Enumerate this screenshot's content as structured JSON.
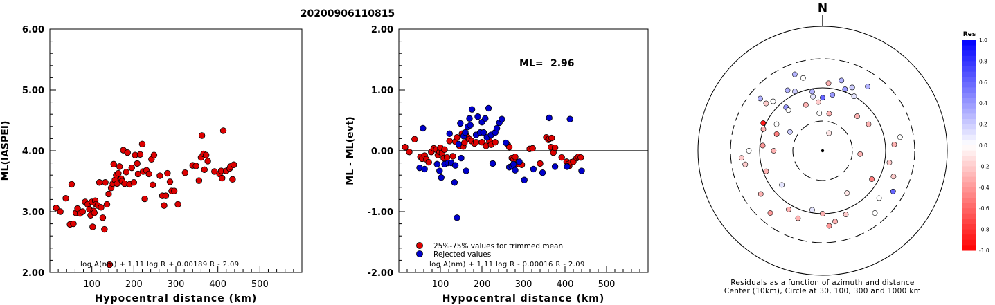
{
  "title": "20200906110815",
  "chart_data": [
    {
      "type": "scatter",
      "ylabel": "ML(IASPEI)",
      "xlabel": "Hypocentral distance (km)",
      "xlim": [
        0,
        600
      ],
      "ylim": [
        2.0,
        6.0
      ],
      "x_ticks": [
        "100",
        "200",
        "300",
        "400",
        "500"
      ],
      "y_ticks": [
        "2.00",
        "3.00",
        "4.00",
        "5.00",
        "6.00"
      ],
      "formula": "log A(nm) + 1.11 log R + 0.00189 R - 2.09",
      "marker_color": "#dd0000",
      "points": [
        [
          15,
          3.06
        ],
        [
          25,
          3.0
        ],
        [
          38,
          3.22
        ],
        [
          48,
          2.79
        ],
        [
          52,
          3.45
        ],
        [
          56,
          2.8
        ],
        [
          62,
          2.98
        ],
        [
          66,
          3.05
        ],
        [
          72,
          2.97
        ],
        [
          78,
          3.0
        ],
        [
          84,
          3.16
        ],
        [
          90,
          3.12
        ],
        [
          94,
          3.04
        ],
        [
          97,
          2.94
        ],
        [
          100,
          3.16
        ],
        [
          102,
          2.75
        ],
        [
          104,
          3.01
        ],
        [
          106,
          2.98
        ],
        [
          108,
          3.18
        ],
        [
          110,
          3.12
        ],
        [
          114,
          3.1
        ],
        [
          118,
          3.48
        ],
        [
          122,
          3.07
        ],
        [
          126,
          2.9
        ],
        [
          130,
          2.71
        ],
        [
          132,
          3.48
        ],
        [
          136,
          3.12
        ],
        [
          140,
          3.29
        ],
        [
          142,
          2.13
        ],
        [
          146,
          3.39
        ],
        [
          150,
          3.46
        ],
        [
          152,
          3.78
        ],
        [
          155,
          3.52
        ],
        [
          158,
          3.6
        ],
        [
          160,
          3.46
        ],
        [
          163,
          3.63
        ],
        [
          166,
          3.74
        ],
        [
          170,
          3.54
        ],
        [
          172,
          3.5
        ],
        [
          175,
          4.01
        ],
        [
          178,
          3.46
        ],
        [
          182,
          3.65
        ],
        [
          185,
          3.97
        ],
        [
          190,
          3.45
        ],
        [
          195,
          3.72
        ],
        [
          200,
          3.48
        ],
        [
          203,
          3.93
        ],
        [
          208,
          3.79
        ],
        [
          210,
          3.62
        ],
        [
          215,
          3.94
        ],
        [
          220,
          4.11
        ],
        [
          222,
          3.66
        ],
        [
          226,
          3.21
        ],
        [
          230,
          3.68
        ],
        [
          236,
          3.62
        ],
        [
          242,
          3.86
        ],
        [
          245,
          3.44
        ],
        [
          248,
          3.93
        ],
        [
          262,
          3.59
        ],
        [
          268,
          3.26
        ],
        [
          272,
          3.1
        ],
        [
          276,
          3.26
        ],
        [
          280,
          3.63
        ],
        [
          286,
          3.49
        ],
        [
          290,
          3.34
        ],
        [
          296,
          3.34
        ],
        [
          305,
          3.12
        ],
        [
          322,
          3.64
        ],
        [
          340,
          3.76
        ],
        [
          348,
          3.75
        ],
        [
          355,
          3.51
        ],
        [
          360,
          3.89
        ],
        [
          362,
          4.25
        ],
        [
          366,
          3.95
        ],
        [
          368,
          3.69
        ],
        [
          372,
          3.93
        ],
        [
          376,
          3.83
        ],
        [
          392,
          3.66
        ],
        [
          404,
          3.62
        ],
        [
          408,
          3.67
        ],
        [
          410,
          3.55
        ],
        [
          413,
          4.33
        ],
        [
          420,
          3.67
        ],
        [
          428,
          3.71
        ],
        [
          430,
          3.74
        ],
        [
          435,
          3.53
        ],
        [
          438,
          3.77
        ]
      ]
    },
    {
      "type": "scatter",
      "ylabel": "ML - ML(evt)",
      "xlabel": "Hypocentral distance (km)",
      "xlim": [
        0,
        600
      ],
      "ylim": [
        -2.0,
        2.0
      ],
      "x_ticks": [
        "100",
        "200",
        "300",
        "400",
        "500"
      ],
      "y_ticks": [
        "-2.00",
        "-1.00",
        "0.00",
        "1.00",
        "2.00"
      ],
      "reference_line": 0.0,
      "ml_label": "ML=",
      "ml_value": "2.96",
      "formula": "log A(nm) + 1.11 log R - 0.00016 R - 2.09",
      "series": [
        {
          "name": "25%-75% values for trimmed mean",
          "color": "#dd0000",
          "points": [
            [
              15,
              0.06
            ],
            [
              25,
              -0.02
            ],
            [
              38,
              0.19
            ],
            [
              52,
              -0.1
            ],
            [
              56,
              -0.13
            ],
            [
              62,
              -0.08
            ],
            [
              66,
              -0.14
            ],
            [
              72,
              -0.19
            ],
            [
              78,
              -0.02
            ],
            [
              84,
              0.04
            ],
            [
              90,
              0.02
            ],
            [
              94,
              -0.07
            ],
            [
              98,
              -0.02
            ],
            [
              100,
              0.05
            ],
            [
              104,
              -0.04
            ],
            [
              108,
              -0.12
            ],
            [
              110,
              0.02
            ],
            [
              116,
              -0.11
            ],
            [
              122,
              0.16
            ],
            [
              130,
              -0.09
            ],
            [
              136,
              0.15
            ],
            [
              140,
              0.22
            ],
            [
              146,
              0.08
            ],
            [
              152,
              0.28
            ],
            [
              155,
              0.07
            ],
            [
              158,
              0.13
            ],
            [
              162,
              0.25
            ],
            [
              166,
              0.22
            ],
            [
              170,
              0.19
            ],
            [
              175,
              0.16
            ],
            [
              182,
              0.12
            ],
            [
              186,
              0.14
            ],
            [
              200,
              0.14
            ],
            [
              210,
              0.08
            ],
            [
              218,
              0.16
            ],
            [
              222,
              0.1
            ],
            [
              232,
              0.14
            ],
            [
              262,
              0.1
            ],
            [
              266,
              0.06
            ],
            [
              272,
              -0.12
            ],
            [
              276,
              -0.14
            ],
            [
              280,
              -0.1
            ],
            [
              286,
              -0.22
            ],
            [
              290,
              -0.22
            ],
            [
              296,
              -0.23
            ],
            [
              315,
              0.03
            ],
            [
              322,
              0.04
            ],
            [
              340,
              -0.21
            ],
            [
              355,
              0.22
            ],
            [
              360,
              0.18
            ],
            [
              362,
              0.2
            ],
            [
              366,
              0.06
            ],
            [
              368,
              0.21
            ],
            [
              372,
              -0.03
            ],
            [
              376,
              0.05
            ],
            [
              392,
              -0.11
            ],
            [
              404,
              -0.18
            ],
            [
              408,
              -0.22
            ],
            [
              410,
              -0.25
            ],
            [
              415,
              -0.19
            ],
            [
              420,
              -0.18
            ],
            [
              428,
              -0.12
            ],
            [
              432,
              -0.1
            ],
            [
              438,
              -0.11
            ]
          ]
        },
        {
          "name": "Rejected values",
          "color": "#0000cc",
          "points": [
            [
              50,
              -0.28
            ],
            [
              58,
              0.37
            ],
            [
              62,
              -0.3
            ],
            [
              92,
              -0.22
            ],
            [
              98,
              -0.33
            ],
            [
              102,
              -0.44
            ],
            [
              110,
              -0.22
            ],
            [
              118,
              -0.2
            ],
            [
              122,
              0.28
            ],
            [
              126,
              -0.2
            ],
            [
              134,
              -0.52
            ],
            [
              136,
              -0.24
            ],
            [
              140,
              -1.1
            ],
            [
              144,
              0.11
            ],
            [
              148,
              0.45
            ],
            [
              150,
              -0.12
            ],
            [
              156,
              0.24
            ],
            [
              160,
              0.3
            ],
            [
              162,
              -0.33
            ],
            [
              166,
              0.39
            ],
            [
              170,
              0.53
            ],
            [
              172,
              0.42
            ],
            [
              176,
              0.68
            ],
            [
              186,
              0.26
            ],
            [
              190,
              0.56
            ],
            [
              196,
              0.3
            ],
            [
              200,
              0.47
            ],
            [
              204,
              0.3
            ],
            [
              208,
              0.53
            ],
            [
              212,
              0.22
            ],
            [
              216,
              0.7
            ],
            [
              222,
              0.26
            ],
            [
              226,
              -0.21
            ],
            [
              232,
              0.3
            ],
            [
              236,
              0.37
            ],
            [
              242,
              0.46
            ],
            [
              248,
              0.52
            ],
            [
              258,
              0.13
            ],
            [
              266,
              -0.27
            ],
            [
              272,
              -0.25
            ],
            [
              276,
              -0.22
            ],
            [
              280,
              -0.32
            ],
            [
              290,
              -0.18
            ],
            [
              302,
              -0.48
            ],
            [
              324,
              -0.3
            ],
            [
              346,
              -0.36
            ],
            [
              362,
              0.54
            ],
            [
              376,
              -0.26
            ],
            [
              405,
              -0.26
            ],
            [
              412,
              0.52
            ],
            [
              440,
              -0.33
            ]
          ]
        }
      ]
    },
    {
      "type": "scatter",
      "subtype": "polar",
      "north_label": "N",
      "caption": "Residuals as a function of azimuth and distance",
      "caption2": "Center (10km), Circle at 30, 100, 300 and 1000 km",
      "colorbar_title": "Res",
      "colorbar_ticks": [
        "1.0",
        "0.8",
        "0.6",
        "0.4",
        "0.2",
        "0.0",
        "-0.2",
        "-0.4",
        "-0.6",
        "-0.8",
        "-1.0"
      ],
      "points_azimuth_distance_res": [
        [
          -20,
          200,
          0.3
        ],
        [
          -15,
          160,
          0.0
        ],
        [
          -25,
          110,
          0.2
        ],
        [
          -10,
          75,
          0.1
        ],
        [
          -5,
          60,
          -0.2
        ],
        [
          0,
          70,
          0.6
        ],
        [
          10,
          80,
          0.4
        ],
        [
          20,
          110,
          0.4
        ],
        [
          25,
          130,
          0.2
        ],
        [
          35,
          180,
          0.3
        ],
        [
          5,
          120,
          -0.3
        ],
        [
          15,
          145,
          0.3
        ],
        [
          30,
          100,
          0.1
        ],
        [
          -40,
          80,
          0.4
        ],
        [
          -45,
          130,
          0.0
        ],
        [
          -50,
          200,
          0.3
        ],
        [
          -60,
          40,
          0.2
        ],
        [
          -70,
          60,
          -0.5
        ],
        [
          -65,
          110,
          -0.9
        ],
        [
          -85,
          90,
          -0.4
        ],
        [
          -90,
          150,
          0.0
        ],
        [
          -95,
          200,
          -0.2
        ],
        [
          10,
          40,
          -0.3
        ],
        [
          20,
          20,
          -0.1
        ],
        [
          45,
          60,
          -0.3
        ],
        [
          60,
          70,
          -0.3
        ],
        [
          80,
          180,
          0.0
        ],
        [
          85,
          140,
          -0.3
        ],
        [
          95,
          40,
          -0.3
        ],
        [
          100,
          120,
          -0.2
        ],
        [
          120,
          80,
          -0.5
        ],
        [
          130,
          150,
          0.0
        ],
        [
          150,
          60,
          -0.1
        ],
        [
          160,
          120,
          -0.2
        ],
        [
          170,
          140,
          -0.3
        ],
        [
          175,
          160,
          -0.4
        ],
        [
          180,
          100,
          -0.3
        ],
        [
          190,
          90,
          0.1
        ],
        [
          200,
          140,
          -0.3
        ],
        [
          210,
          120,
          -0.3
        ],
        [
          220,
          200,
          -0.4
        ],
        [
          230,
          70,
          0.1
        ],
        [
          235,
          160,
          -0.3
        ],
        [
          250,
          90,
          -0.3
        ],
        [
          260,
          180,
          -0.2
        ],
        [
          270,
          60,
          -0.3
        ],
        [
          290,
          100,
          -0.3
        ],
        [
          300,
          70,
          0.0
        ],
        [
          310,
          150,
          -0.2
        ],
        [
          320,
          70,
          0.0
        ],
        [
          330,
          130,
          0.3
        ],
        [
          340,
          60,
          -0.3
        ],
        [
          350,
          90,
          0.3
        ],
        [
          355,
          40,
          0.0
        ],
        [
          120,
          200,
          0.6
        ],
        [
          140,
          200,
          0.0
        ],
        [
          110,
          160,
          -0.2
        ]
      ]
    }
  ]
}
